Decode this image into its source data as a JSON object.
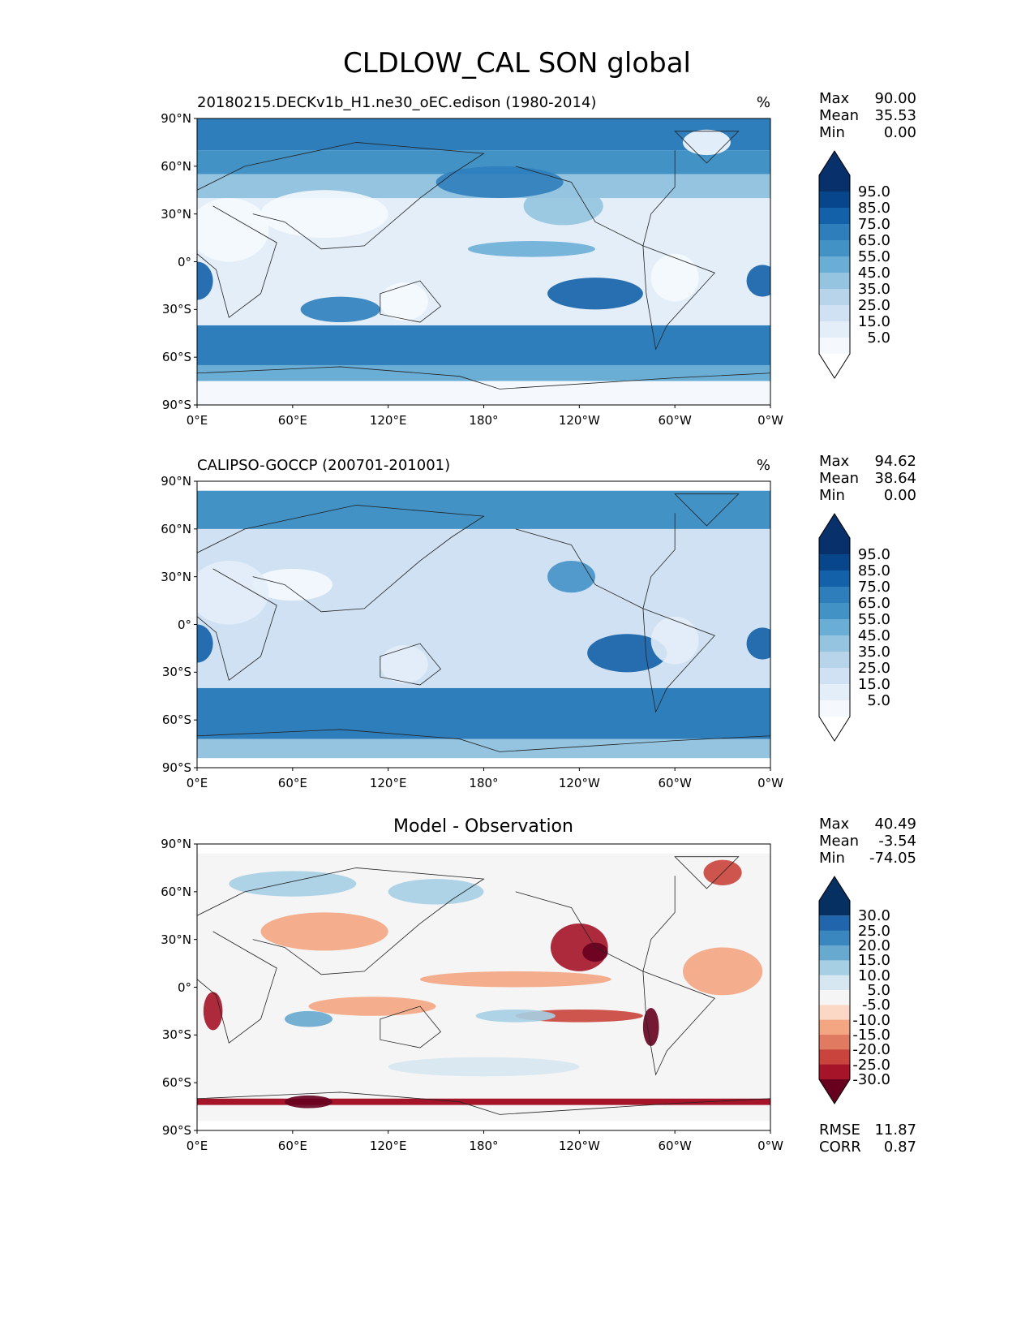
{
  "title": "CLDLOW_CAL SON global",
  "lat_ticks": [
    "90°N",
    "60°N",
    "30°N",
    "0°",
    "30°S",
    "60°S",
    "90°S"
  ],
  "lon_ticks": [
    "0°E",
    "60°E",
    "120°E",
    "180°",
    "120°W",
    "60°W",
    "0°W"
  ],
  "panels": [
    {
      "title": "20180215.DECKv1b_H1.ne30_oEC.edison (1980-2014)",
      "units": "%",
      "max_label": "Max",
      "max": "90.00",
      "mean_label": "Mean",
      "mean": "35.53",
      "min_label": "Min",
      "min": "0.00",
      "colorbar": [
        "95.0",
        "85.0",
        "75.0",
        "65.0",
        "55.0",
        "45.0",
        "35.0",
        "25.0",
        "15.0",
        "5.0"
      ]
    },
    {
      "title": "CALIPSO-GOCCP (200701-201001)",
      "units": "%",
      "max_label": "Max",
      "max": "94.62",
      "mean_label": "Mean",
      "mean": "38.64",
      "min_label": "Min",
      "min": "0.00",
      "colorbar": [
        "95.0",
        "85.0",
        "75.0",
        "65.0",
        "55.0",
        "45.0",
        "35.0",
        "25.0",
        "15.0",
        "5.0"
      ]
    },
    {
      "title": "Model - Observation",
      "units": "",
      "max_label": "Max",
      "max": "40.49",
      "mean_label": "Mean",
      "mean": "-3.54",
      "min_label": "Min",
      "min": "-74.05",
      "colorbar": [
        "30.0",
        "25.0",
        "20.0",
        "15.0",
        "10.0",
        "5.0",
        "-5.0",
        "-10.0",
        "-15.0",
        "-20.0",
        "-25.0",
        "-30.0"
      ],
      "rmse_label": "RMSE",
      "rmse": "11.87",
      "corr_label": "CORR",
      "corr": "0.87"
    }
  ],
  "colors": {
    "blues": [
      "#08306b",
      "#08468c",
      "#1361a9",
      "#2e7ebc",
      "#4292c6",
      "#6aaed6",
      "#94c4df",
      "#b7d4ea",
      "#cfe1f2",
      "#e3eef9",
      "#f5f9fe",
      "#ffffff"
    ],
    "diverging": [
      "#053061",
      "#2166ac",
      "#3a87bf",
      "#67a9cf",
      "#a6cfe4",
      "#d6e7f1",
      "#f5f5f5",
      "#fbd8c6",
      "#f4a582",
      "#e07b62",
      "#c9443c",
      "#a51429",
      "#67001f"
    ]
  }
}
